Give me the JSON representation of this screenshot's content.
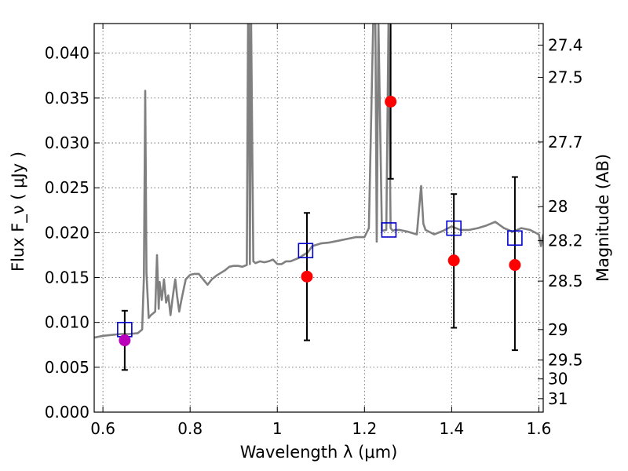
{
  "chart_data": {
    "type": "scatter",
    "title": "",
    "xlabel": "Wavelength  λ (μm)",
    "ylabel": "Flux  F_ν  ( μJy )",
    "y2label": "Magnitude (AB)",
    "xlim": [
      0.58,
      1.61
    ],
    "ylim": [
      0.0,
      0.0433
    ],
    "grid": true,
    "x_ticks": [
      0.6,
      0.8,
      1.0,
      1.2,
      1.4,
      1.6
    ],
    "x_tick_labels": [
      "0.6",
      "0.8",
      "1",
      "1.2",
      "1.4",
      "1.6"
    ],
    "y_ticks": [
      0.0,
      0.005,
      0.01,
      0.015,
      0.02,
      0.025,
      0.03,
      0.035,
      0.04
    ],
    "y_tick_labels": [
      "0.000",
      "0.005",
      "0.010",
      "0.015",
      "0.020",
      "0.025",
      "0.030",
      "0.035",
      "0.040"
    ],
    "mag_ticks": [
      {
        "label": "27.4",
        "flux": 0.0409
      },
      {
        "label": "27.5",
        "flux": 0.0373
      },
      {
        "label": "27.7",
        "flux": 0.0301
      },
      {
        "label": "28",
        "flux": 0.0229
      },
      {
        "label": "28.2",
        "flux": 0.0191
      },
      {
        "label": "28.5",
        "flux": 0.0146
      },
      {
        "label": "29",
        "flux": 0.0092
      },
      {
        "label": "29.5",
        "flux": 0.0058
      },
      {
        "label": "30",
        "flux": 0.0037
      },
      {
        "label": "31",
        "flux": 0.0015
      }
    ],
    "series": [
      {
        "kind": "spectrum",
        "color": "#808080",
        "x": [
          0.58,
          0.6,
          0.62,
          0.64,
          0.66,
          0.68,
          0.69,
          0.694,
          0.697,
          0.7,
          0.705,
          0.71,
          0.72,
          0.724,
          0.728,
          0.73,
          0.735,
          0.74,
          0.745,
          0.75,
          0.755,
          0.76,
          0.763,
          0.766,
          0.77,
          0.775,
          0.78,
          0.79,
          0.8,
          0.81,
          0.82,
          0.83,
          0.84,
          0.85,
          0.86,
          0.87,
          0.88,
          0.89,
          0.9,
          0.91,
          0.92,
          0.93,
          0.933,
          0.935,
          0.937,
          0.94,
          0.945,
          0.95,
          0.96,
          0.97,
          0.98,
          0.99,
          1.0,
          1.01,
          1.02,
          1.03,
          1.04,
          1.05,
          1.06,
          1.07,
          1.08,
          1.1,
          1.12,
          1.14,
          1.16,
          1.18,
          1.2,
          1.21,
          1.22,
          1.225,
          1.228,
          1.232,
          1.24,
          1.25,
          1.255,
          1.26,
          1.265,
          1.27,
          1.28,
          1.3,
          1.32,
          1.325,
          1.33,
          1.335,
          1.34,
          1.36,
          1.38,
          1.4,
          1.42,
          1.44,
          1.46,
          1.48,
          1.5,
          1.52,
          1.54,
          1.56,
          1.58,
          1.6,
          1.605,
          1.61
        ],
        "y": [
          0.0083,
          0.0085,
          0.0086,
          0.0087,
          0.0087,
          0.0088,
          0.0092,
          0.015,
          0.0358,
          0.0155,
          0.0105,
          0.0108,
          0.0112,
          0.0175,
          0.0115,
          0.0145,
          0.0125,
          0.0148,
          0.0122,
          0.013,
          0.0108,
          0.0128,
          0.0138,
          0.0148,
          0.013,
          0.0112,
          0.0125,
          0.0148,
          0.0153,
          0.0154,
          0.0154,
          0.0148,
          0.0142,
          0.0148,
          0.0152,
          0.0155,
          0.0158,
          0.0162,
          0.0163,
          0.0163,
          0.0162,
          0.0164,
          0.0433,
          0.0433,
          0.0165,
          0.0433,
          0.0168,
          0.0166,
          0.0168,
          0.0167,
          0.0168,
          0.017,
          0.0165,
          0.0165,
          0.0168,
          0.0168,
          0.017,
          0.0172,
          0.0175,
          0.0178,
          0.0185,
          0.0188,
          0.0189,
          0.0191,
          0.0193,
          0.0195,
          0.0195,
          0.0205,
          0.0433,
          0.0433,
          0.019,
          0.0433,
          0.0202,
          0.0203,
          0.0433,
          0.0205,
          0.0202,
          0.0203,
          0.0203,
          0.0201,
          0.0198,
          0.0225,
          0.0252,
          0.021,
          0.0203,
          0.0198,
          0.0202,
          0.0207,
          0.0203,
          0.0203,
          0.0205,
          0.0208,
          0.0212,
          0.0205,
          0.0201,
          0.0205,
          0.0203,
          0.0198,
          0.0185,
          0.0198
        ]
      },
      {
        "kind": "model-boxes",
        "color": "#0000cc",
        "x": [
          0.65,
          1.065,
          1.256,
          1.405,
          1.545
        ],
        "y": [
          0.0092,
          0.018,
          0.0203,
          0.0205,
          0.0194
        ]
      },
      {
        "kind": "observed-points",
        "color": "#ff0000",
        "x": [
          1.068,
          1.26,
          1.405,
          1.545
        ],
        "y": [
          0.0151,
          0.0346,
          0.0169,
          0.0164
        ],
        "err_low": [
          0.008,
          0.026,
          0.0094,
          0.0069
        ],
        "err_high": [
          0.0222,
          0.0433,
          0.0243,
          0.0262
        ]
      },
      {
        "kind": "observed-points",
        "color": "#bb00bb",
        "x": [
          0.65
        ],
        "y": [
          0.008
        ],
        "err_low": [
          0.0047
        ],
        "err_high": [
          0.0113
        ]
      }
    ]
  }
}
